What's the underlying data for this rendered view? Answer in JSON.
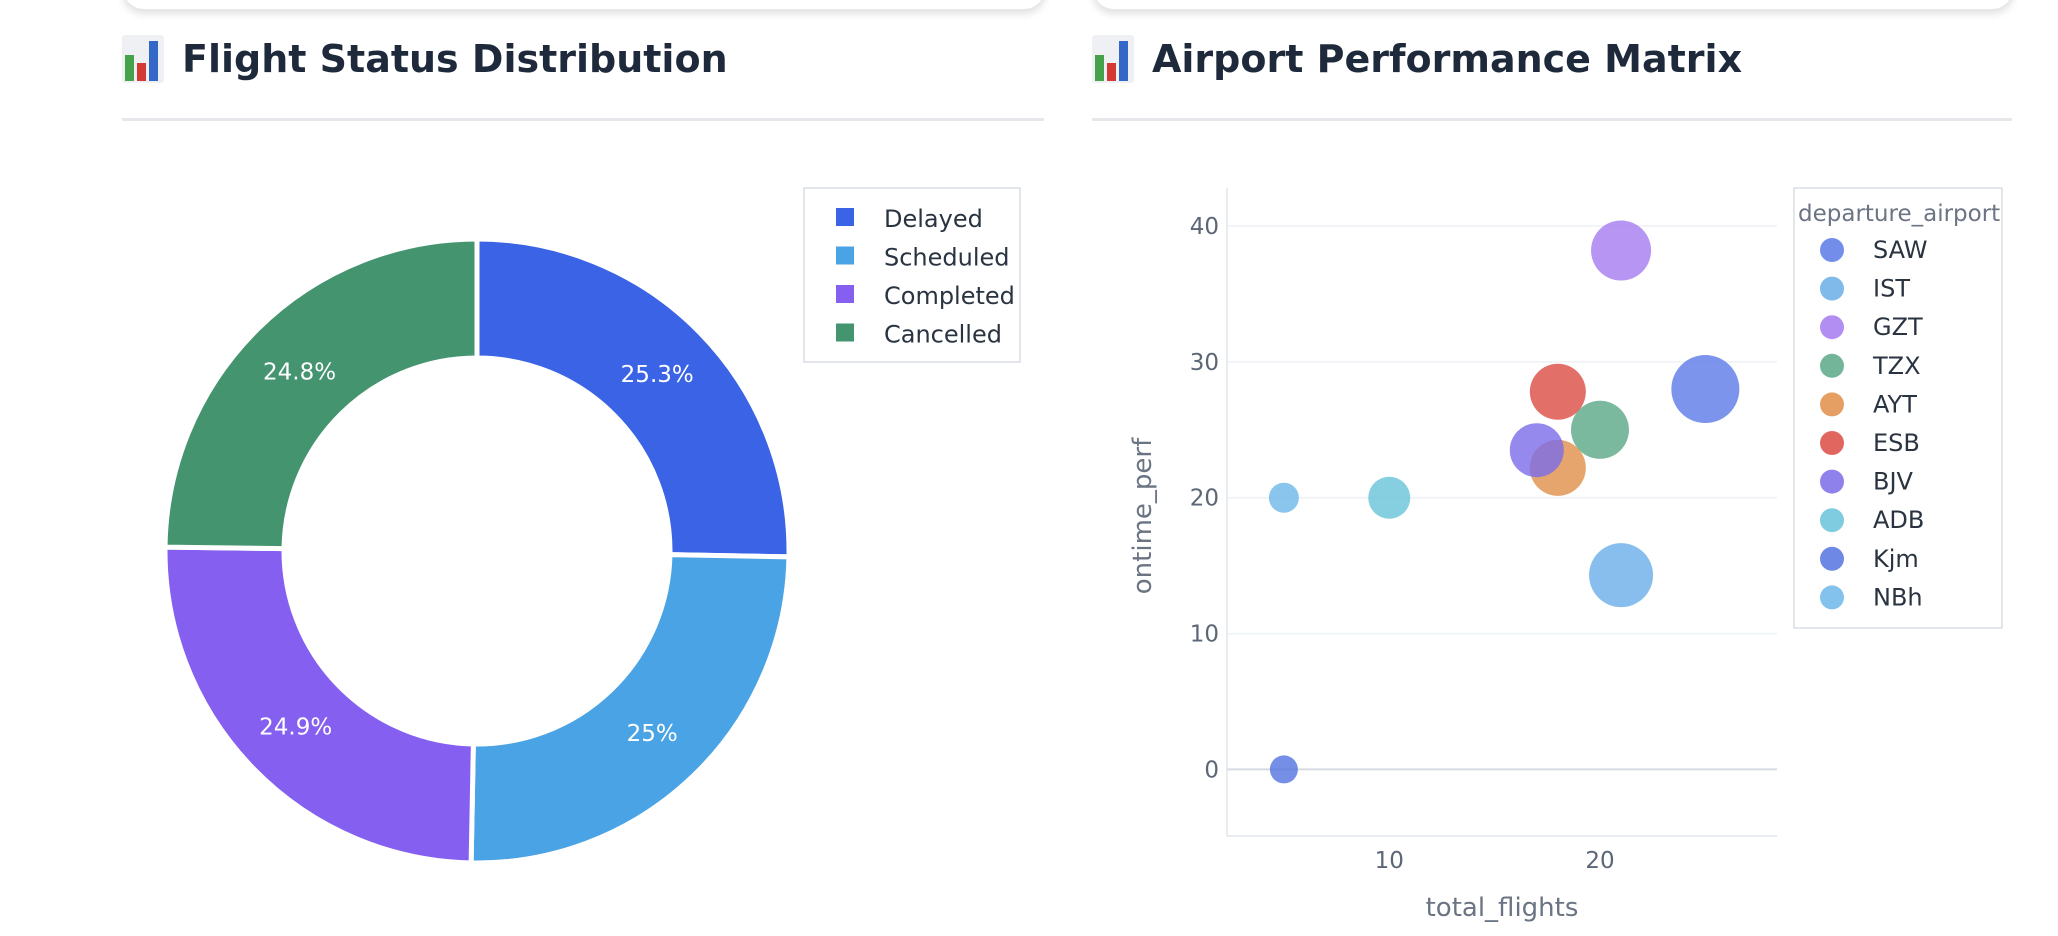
{
  "panels": [
    {
      "title": "Flight Status Distribution",
      "icon": "bar-chart-icon"
    },
    {
      "title": "Airport Performance Matrix",
      "icon": "bar-chart-icon"
    }
  ],
  "chart_data": [
    {
      "type": "pie",
      "hole": true,
      "categories": [
        "Delayed",
        "Scheduled",
        "Completed",
        "Cancelled"
      ],
      "values": [
        25.3,
        25,
        24.9,
        24.8
      ],
      "labels": [
        "25.3%",
        "25%",
        "24.9%",
        "24.8%"
      ],
      "colors": [
        "#3a63e6",
        "#4aa3e4",
        "#8560f0",
        "#449470"
      ],
      "legend_position": "top-right"
    },
    {
      "type": "scatter",
      "xlabel": "total_flights",
      "ylabel": "ontime_perf",
      "x_ticks": [
        "10",
        "20"
      ],
      "y_ticks": [
        "0",
        "10",
        "20",
        "30",
        "40"
      ],
      "xlim": [
        2.3,
        28.4
      ],
      "ylim": [
        -4.9,
        42.8
      ],
      "grid": true,
      "legend_title": "departure_airport",
      "legend_position": "right",
      "series": [
        {
          "name": "SAW",
          "color": "#5b79e6",
          "points": [
            {
              "x": 25,
              "y": 28,
              "size": 34
            }
          ]
        },
        {
          "name": "IST",
          "color": "#6aaee8",
          "points": [
            {
              "x": 21,
              "y": 14.3,
              "size": 32
            }
          ]
        },
        {
          "name": "GZT",
          "color": "#a47af0",
          "points": [
            {
              "x": 21,
              "y": 38.2,
              "size": 30
            }
          ]
        },
        {
          "name": "TZX",
          "color": "#5aa886",
          "points": [
            {
              "x": 20,
              "y": 25,
              "size": 29
            }
          ]
        },
        {
          "name": "AYT",
          "color": "#e08e48",
          "points": [
            {
              "x": 18,
              "y": 22.2,
              "size": 28
            }
          ]
        },
        {
          "name": "ESB",
          "color": "#dc4b44",
          "points": [
            {
              "x": 18,
              "y": 27.8,
              "size": 28
            }
          ]
        },
        {
          "name": "BJV",
          "color": "#7b6be8",
          "points": [
            {
              "x": 17,
              "y": 23.5,
              "size": 27
            }
          ]
        },
        {
          "name": "ADB",
          "color": "#68c3da",
          "points": [
            {
              "x": 10,
              "y": 20,
              "size": 21
            }
          ]
        },
        {
          "name": "Kjm",
          "color": "#5373e0",
          "points": [
            {
              "x": 5,
              "y": 0,
              "size": 14
            }
          ]
        },
        {
          "name": "NBh",
          "color": "#6db7ea",
          "points": [
            {
              "x": 5,
              "y": 20,
              "size": 15
            }
          ]
        }
      ]
    }
  ]
}
